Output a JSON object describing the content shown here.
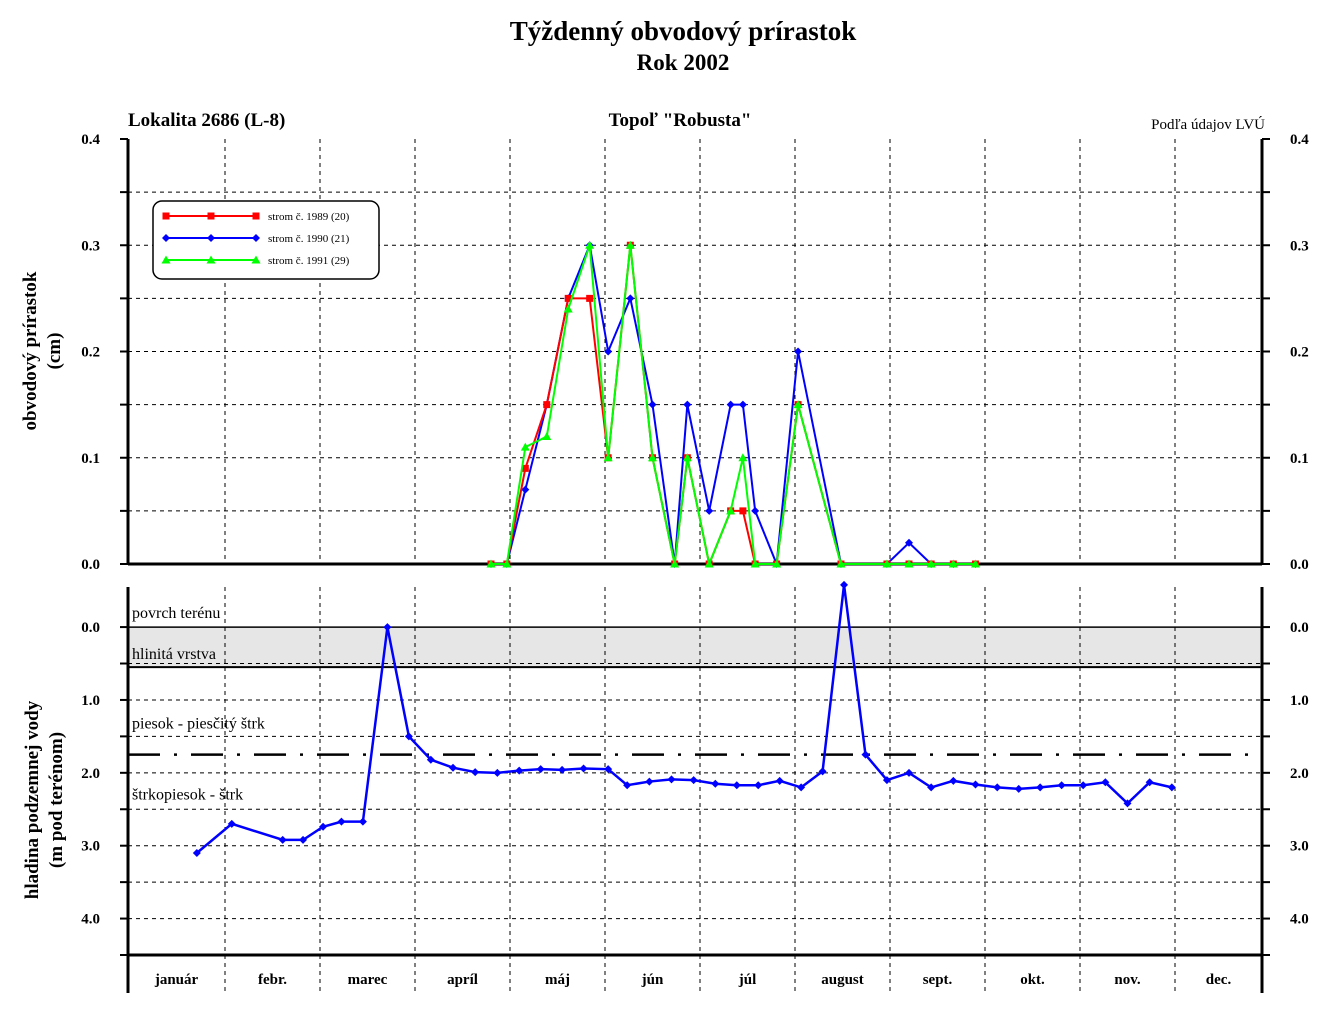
{
  "title": "Týždenný obvodový prírastok",
  "subtitle": "Rok 2002",
  "header_left": "Lokalita 2686 (L-8)",
  "header_center": "Topoľ \"Robusta\"",
  "header_right": "Podľa údajov LVÚ",
  "top_ylabel_line1": "obvodový prírastok",
  "top_ylabel_line2": "(cm)",
  "bottom_ylabel_line1": "hladina podzemnej vody",
  "bottom_ylabel_line2": "(m pod terénom)",
  "layer_labels": {
    "surface": "povrch terénu",
    "clay": "hlinitá vrstva",
    "sand": "piesok - piesčitý štrk",
    "gravel": "štrkopiesok - štrk"
  },
  "colors": {
    "tree_1989": "#ff0000",
    "tree_1990": "#0000ff",
    "tree_1991": "#00ff00",
    "groundwater": "#0000ff",
    "clay_fill": "#e6e6e6",
    "grid": "#000000"
  },
  "chart_data": [
    {
      "type": "line",
      "title": "Týždenný obvodový prírastok",
      "subtitle": "Rok 2002",
      "ylabel": "obvodový prírastok (cm)",
      "x_unit": "day of year 2002",
      "ylim": [
        0,
        0.4
      ],
      "y_ticks": [
        "0.0",
        "0.1",
        "0.2",
        "0.3",
        "0.4"
      ],
      "grid": true,
      "legend_position": "top-left",
      "categories": [
        "január",
        "febr.",
        "marec",
        "apríl",
        "máj",
        "jún",
        "júl",
        "august",
        "sept.",
        "okt.",
        "nov.",
        "dec."
      ],
      "series": [
        {
          "name": "strom č. 1989 (20)",
          "marker": "square",
          "x": [
            114,
            119,
            125,
            132,
            139,
            146,
            152,
            159,
            166,
            173,
            177,
            184,
            191,
            195,
            199,
            206,
            213,
            227,
            242,
            249,
            256,
            263,
            270
          ],
          "y": [
            0,
            0,
            0.09,
            0.15,
            0.25,
            0.25,
            0.1,
            0.3,
            0.1,
            0,
            0.1,
            0,
            0.05,
            0.05,
            0,
            0,
            0.15,
            0,
            0,
            0,
            0,
            0,
            0
          ]
        },
        {
          "name": "strom č. 1990 (21)",
          "marker": "diamond",
          "x": [
            114,
            119,
            125,
            132,
            139,
            146,
            152,
            159,
            166,
            173,
            177,
            184,
            191,
            195,
            199,
            206,
            213,
            227,
            242,
            249,
            256,
            263,
            270
          ],
          "y": [
            0,
            0,
            0.07,
            0.15,
            0.25,
            0.3,
            0.2,
            0.25,
            0.15,
            0,
            0.15,
            0.05,
            0.15,
            0.15,
            0.05,
            0,
            0.2,
            0,
            0,
            0.02,
            0,
            0,
            0
          ]
        },
        {
          "name": "strom č. 1991 (29)",
          "marker": "triangle",
          "x": [
            114,
            119,
            125,
            132,
            139,
            146,
            152,
            159,
            166,
            173,
            177,
            184,
            191,
            195,
            199,
            206,
            213,
            227,
            242,
            249,
            256,
            263,
            270
          ],
          "y": [
            0,
            0,
            0.11,
            0.12,
            0.24,
            0.3,
            0.1,
            0.3,
            0.1,
            0,
            0.1,
            0,
            0.05,
            0.1,
            0,
            0,
            0.15,
            0,
            0,
            0,
            0,
            0,
            0
          ]
        }
      ]
    },
    {
      "type": "line",
      "ylabel": "hladina podzemnej vody (m pod terénom)",
      "x_unit": "day of year 2002",
      "ylim": [
        4.5,
        -0.55
      ],
      "y_ticks": [
        "0.0",
        "1.0",
        "2.0",
        "3.0",
        "4.0"
      ],
      "grid": true,
      "clay_layer_bottom_m": 0.55,
      "sand_gravel_boundary_m": 1.75,
      "series": [
        {
          "name": "hladina podzemnej vody",
          "marker": "diamond",
          "x": [
            22,
            33,
            48,
            54,
            60,
            66,
            73,
            81,
            88,
            95,
            102,
            109,
            116,
            123,
            130,
            137,
            144,
            152,
            158,
            165,
            172,
            179,
            186,
            193,
            200,
            207,
            214,
            221,
            228,
            235,
            242,
            249,
            256,
            263,
            270,
            277,
            284,
            291,
            298,
            305,
            312,
            319,
            326,
            333
          ],
          "y": [
            3.1,
            2.7,
            2.92,
            2.92,
            2.74,
            2.67,
            2.67,
            0.0,
            1.5,
            1.82,
            1.93,
            1.99,
            2.0,
            1.97,
            1.95,
            1.96,
            1.94,
            1.95,
            2.17,
            2.12,
            2.09,
            2.1,
            2.15,
            2.17,
            2.17,
            2.11,
            2.2,
            1.98,
            -0.58,
            1.75,
            2.1,
            2.0,
            2.2,
            2.11,
            2.16,
            2.2,
            2.22,
            2.2,
            2.17,
            2.17,
            2.13,
            2.42,
            2.13,
            2.2
          ]
        }
      ]
    }
  ]
}
